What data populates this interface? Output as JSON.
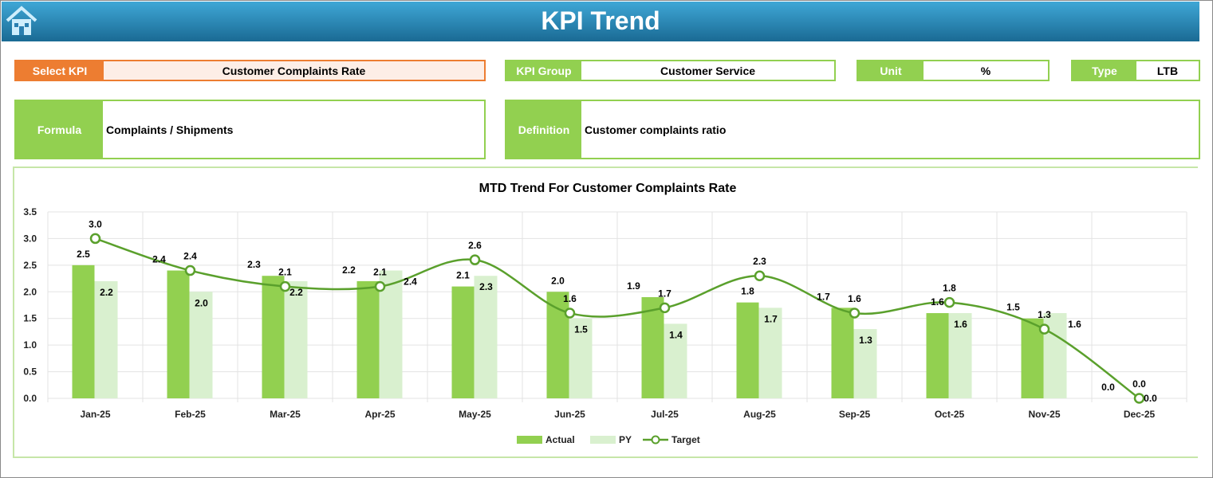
{
  "header": {
    "title": "KPI Trend",
    "home_icon": "home-icon"
  },
  "select_kpi": {
    "label": "Select KPI",
    "value": "Customer Complaints Rate"
  },
  "kpi_group": {
    "label": "KPI Group",
    "value": "Customer Service"
  },
  "unit": {
    "label": "Unit",
    "value": "%"
  },
  "type": {
    "label": "Type",
    "value": "LTB"
  },
  "formula": {
    "label": "Formula",
    "value": "Complaints / Shipments"
  },
  "definition": {
    "label": "Definition",
    "value": "Customer complaints ratio"
  },
  "colors": {
    "header": "#1f7fb0",
    "select_label": "#ed7d31",
    "select_fill": "#fdeee6",
    "green": "#92d050",
    "actual": "#92d050",
    "py": "#d9f0cf",
    "target": "#5aa02c"
  },
  "chart_data": {
    "type": "bar+line",
    "title": "MTD Trend For Customer Complaints Rate",
    "categories": [
      "Jan-25",
      "Feb-25",
      "Mar-25",
      "Apr-25",
      "May-25",
      "Jun-25",
      "Jul-25",
      "Aug-25",
      "Sep-25",
      "Oct-25",
      "Nov-25",
      "Dec-25"
    ],
    "ylim": [
      0,
      3.5
    ],
    "yticks": [
      "0.0",
      "0.5",
      "1.0",
      "1.5",
      "2.0",
      "2.5",
      "3.0",
      "3.5"
    ],
    "grid": true,
    "legend": "bottom",
    "series": [
      {
        "name": "Actual",
        "type": "bar",
        "values": [
          2.5,
          2.4,
          2.3,
          2.2,
          2.1,
          2.0,
          1.9,
          1.8,
          1.7,
          1.6,
          1.5,
          0.0
        ]
      },
      {
        "name": "PY",
        "type": "bar",
        "values": [
          2.2,
          2.0,
          2.2,
          2.4,
          2.3,
          1.5,
          1.4,
          1.7,
          1.3,
          1.6,
          1.6,
          0.0
        ]
      },
      {
        "name": "Target",
        "type": "line",
        "values": [
          3.0,
          2.4,
          2.1,
          2.1,
          2.6,
          1.6,
          1.7,
          2.3,
          1.6,
          1.8,
          1.3,
          0.0
        ]
      }
    ]
  }
}
